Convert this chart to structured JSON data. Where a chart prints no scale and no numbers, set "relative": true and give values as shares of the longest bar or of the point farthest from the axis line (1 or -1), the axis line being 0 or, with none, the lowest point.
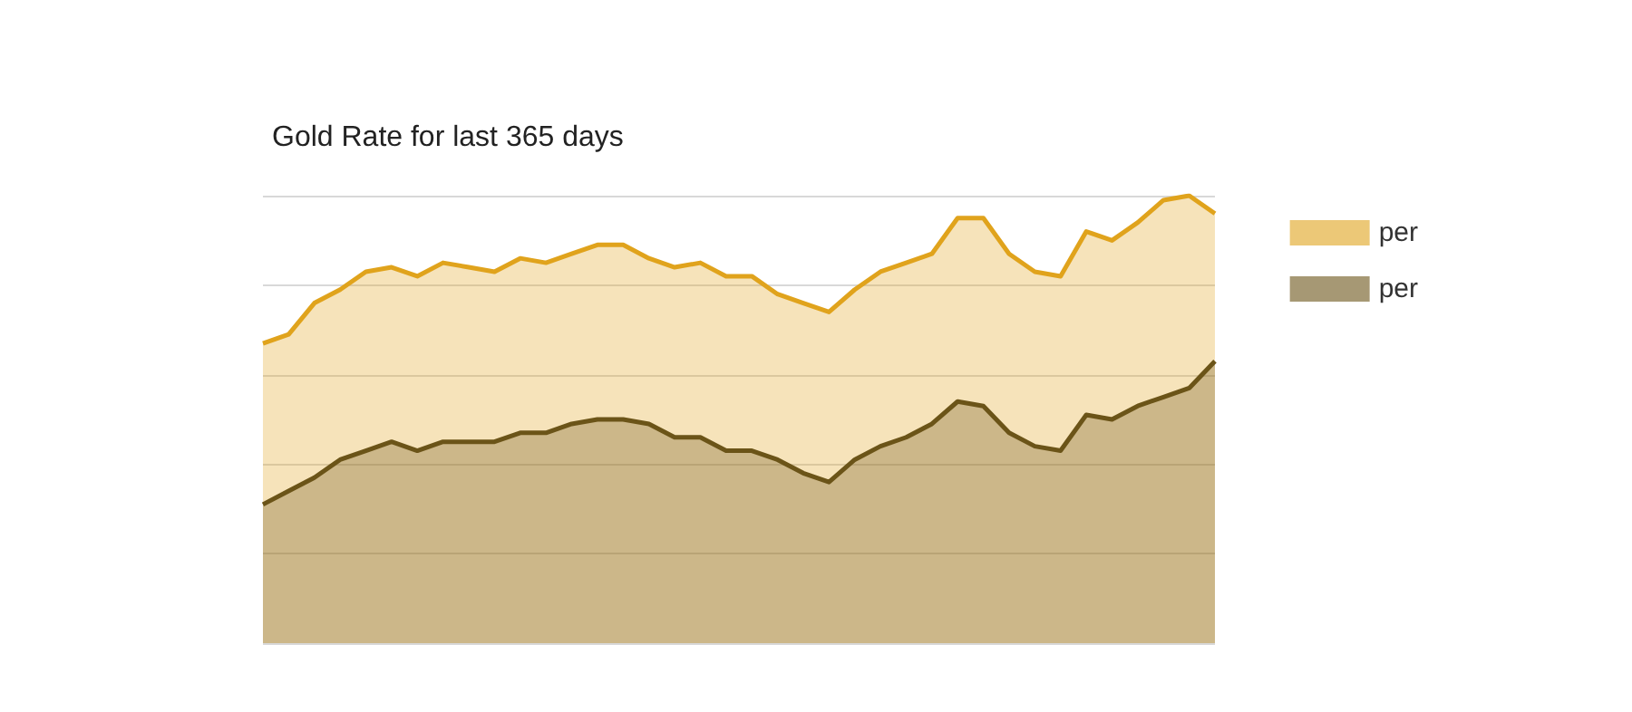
{
  "chart_data": {
    "type": "area",
    "title": "Gold Rate for last 365 days",
    "relative": true,
    "grid": "y",
    "legend": "top right",
    "marker": "none",
    "categories": [
      null,
      null,
      null,
      null,
      null,
      null,
      null,
      null,
      null,
      null,
      null,
      null,
      null,
      null,
      null,
      null,
      null,
      null,
      null,
      null,
      null,
      null,
      null,
      null,
      null,
      null,
      null,
      null,
      null,
      null,
      null,
      null,
      null,
      null,
      null,
      null,
      null,
      null
    ],
    "series": [
      {
        "name": "per",
        "color": "#e0a31c",
        "values": [
          0.67,
          0.69,
          0.76,
          0.79,
          0.83,
          0.84,
          0.82,
          0.85,
          0.84,
          0.83,
          0.86,
          0.85,
          0.87,
          0.89,
          0.89,
          0.86,
          0.84,
          0.85,
          0.82,
          0.82,
          0.78,
          0.76,
          0.74,
          0.79,
          0.83,
          0.85,
          0.87,
          0.95,
          0.95,
          0.87,
          0.83,
          0.82,
          0.92,
          0.9,
          0.94,
          0.99,
          1.0,
          0.96
        ]
      },
      {
        "name": "per",
        "color": "#6b5418",
        "values": [
          0.31,
          0.34,
          0.37,
          0.41,
          0.43,
          0.45,
          0.43,
          0.45,
          0.45,
          0.45,
          0.47,
          0.47,
          0.49,
          0.5,
          0.5,
          0.49,
          0.46,
          0.46,
          0.43,
          0.43,
          0.41,
          0.38,
          0.36,
          0.41,
          0.44,
          0.46,
          0.49,
          0.54,
          0.53,
          0.47,
          0.44,
          0.43,
          0.51,
          0.5,
          0.53,
          0.55,
          0.57,
          0.63
        ]
      }
    ]
  }
}
